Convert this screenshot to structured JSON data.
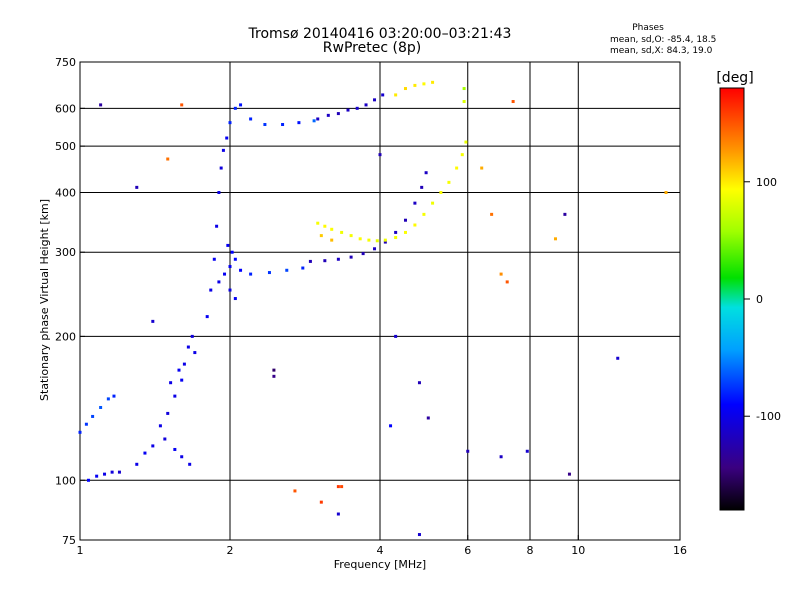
{
  "chart_data": {
    "type": "scatter",
    "title": "Tromsø 20140416 03:20:00–03:21:43",
    "subtitle": "RwPretec (8p)",
    "xlabel": "Frequency [MHz]",
    "ylabel": "Stationary phase Virtual Height [km]",
    "x_scale": "log",
    "y_scale": "log",
    "xlim": [
      1,
      16
    ],
    "ylim": [
      75,
      750
    ],
    "x_ticks": [
      1,
      2,
      4,
      6,
      8,
      10,
      16
    ],
    "y_ticks": [
      75,
      100,
      200,
      300,
      400,
      500,
      600,
      750
    ],
    "x_grid": [
      2,
      4,
      6,
      8,
      10
    ],
    "y_grid": [
      100,
      200,
      300,
      400,
      500,
      600
    ],
    "grid": true,
    "phase_stats": {
      "heading": "Phases",
      "o_line": "mean, sd,O: -85.4, 18.5",
      "x_line": "mean, sd,X:  84.3, 19.0"
    },
    "colorbar": {
      "label": "[deg]",
      "range": [
        -180,
        180
      ],
      "ticks": [
        100,
        0,
        -100
      ],
      "tick_labels": [
        "100",
        "0",
        "-100"
      ]
    },
    "series": [
      {
        "points": [
          {
            "x": 1.0,
            "y": 126,
            "phase": -80
          },
          {
            "x": 1.03,
            "y": 131,
            "phase": -75
          },
          {
            "x": 1.06,
            "y": 136,
            "phase": -70
          },
          {
            "x": 1.1,
            "y": 142,
            "phase": -65
          },
          {
            "x": 1.14,
            "y": 148,
            "phase": -70
          },
          {
            "x": 1.17,
            "y": 150,
            "phase": -80
          },
          {
            "x": 1.04,
            "y": 100,
            "phase": -90
          },
          {
            "x": 1.08,
            "y": 102,
            "phase": -95
          },
          {
            "x": 1.12,
            "y": 103,
            "phase": -100
          },
          {
            "x": 1.16,
            "y": 104,
            "phase": -105
          },
          {
            "x": 1.2,
            "y": 104,
            "phase": -110
          },
          {
            "x": 1.3,
            "y": 108,
            "phase": -100
          },
          {
            "x": 1.35,
            "y": 114,
            "phase": -95
          },
          {
            "x": 1.4,
            "y": 118,
            "phase": -100
          },
          {
            "x": 1.45,
            "y": 130,
            "phase": -100
          },
          {
            "x": 1.5,
            "y": 138,
            "phase": -105
          },
          {
            "x": 1.55,
            "y": 150,
            "phase": -100
          },
          {
            "x": 1.6,
            "y": 162,
            "phase": -95
          },
          {
            "x": 1.62,
            "y": 175,
            "phase": -100
          },
          {
            "x": 1.65,
            "y": 190,
            "phase": -100
          },
          {
            "x": 1.68,
            "y": 200,
            "phase": -105
          },
          {
            "x": 1.7,
            "y": 185,
            "phase": -100
          },
          {
            "x": 1.58,
            "y": 170,
            "phase": -95
          },
          {
            "x": 1.52,
            "y": 160,
            "phase": -100
          },
          {
            "x": 1.48,
            "y": 122,
            "phase": -105
          },
          {
            "x": 1.55,
            "y": 116,
            "phase": -95
          },
          {
            "x": 1.6,
            "y": 112,
            "phase": -100
          },
          {
            "x": 1.66,
            "y": 108,
            "phase": -100
          },
          {
            "x": 1.8,
            "y": 220,
            "phase": -95
          },
          {
            "x": 1.83,
            "y": 250,
            "phase": -100
          },
          {
            "x": 1.86,
            "y": 290,
            "phase": -95
          },
          {
            "x": 1.88,
            "y": 340,
            "phase": -100
          },
          {
            "x": 1.9,
            "y": 400,
            "phase": -100
          },
          {
            "x": 1.92,
            "y": 450,
            "phase": -105
          },
          {
            "x": 1.94,
            "y": 490,
            "phase": -100
          },
          {
            "x": 1.97,
            "y": 520,
            "phase": -95
          },
          {
            "x": 1.9,
            "y": 260,
            "phase": -100
          },
          {
            "x": 1.95,
            "y": 270,
            "phase": -95
          },
          {
            "x": 2.0,
            "y": 280,
            "phase": -95
          },
          {
            "x": 2.05,
            "y": 290,
            "phase": -90
          },
          {
            "x": 2.1,
            "y": 275,
            "phase": -90
          },
          {
            "x": 2.0,
            "y": 250,
            "phase": -100
          },
          {
            "x": 2.05,
            "y": 240,
            "phase": -95
          },
          {
            "x": 2.02,
            "y": 300,
            "phase": -90
          },
          {
            "x": 1.98,
            "y": 310,
            "phase": -95
          },
          {
            "x": 2.2,
            "y": 270,
            "phase": -80
          },
          {
            "x": 2.4,
            "y": 272,
            "phase": -75
          },
          {
            "x": 2.6,
            "y": 275,
            "phase": -70
          },
          {
            "x": 2.8,
            "y": 278,
            "phase": -80
          },
          {
            "x": 2.0,
            "y": 560,
            "phase": -80
          },
          {
            "x": 2.05,
            "y": 600,
            "phase": -80
          },
          {
            "x": 2.1,
            "y": 610,
            "phase": -85
          },
          {
            "x": 2.2,
            "y": 570,
            "phase": -80
          },
          {
            "x": 2.35,
            "y": 555,
            "phase": -75
          },
          {
            "x": 2.55,
            "y": 555,
            "phase": -80
          },
          {
            "x": 2.75,
            "y": 560,
            "phase": -85
          },
          {
            "x": 2.95,
            "y": 565,
            "phase": -60
          },
          {
            "x": 3.0,
            "y": 570,
            "phase": -115
          },
          {
            "x": 3.15,
            "y": 580,
            "phase": -115
          },
          {
            "x": 3.3,
            "y": 585,
            "phase": -120
          },
          {
            "x": 3.45,
            "y": 595,
            "phase": -115
          },
          {
            "x": 3.6,
            "y": 600,
            "phase": -110
          },
          {
            "x": 3.75,
            "y": 610,
            "phase": -115
          },
          {
            "x": 3.9,
            "y": 625,
            "phase": -115
          },
          {
            "x": 4.05,
            "y": 640,
            "phase": -110
          },
          {
            "x": 2.9,
            "y": 287,
            "phase": -120
          },
          {
            "x": 3.1,
            "y": 288,
            "phase": -120
          },
          {
            "x": 3.3,
            "y": 290,
            "phase": -115
          },
          {
            "x": 3.5,
            "y": 293,
            "phase": -120
          },
          {
            "x": 3.7,
            "y": 298,
            "phase": -120
          },
          {
            "x": 3.9,
            "y": 305,
            "phase": -115
          },
          {
            "x": 4.1,
            "y": 315,
            "phase": -120
          },
          {
            "x": 4.3,
            "y": 330,
            "phase": -115
          },
          {
            "x": 4.5,
            "y": 350,
            "phase": -120
          },
          {
            "x": 4.7,
            "y": 380,
            "phase": -115
          },
          {
            "x": 4.85,
            "y": 410,
            "phase": -120
          },
          {
            "x": 4.95,
            "y": 440,
            "phase": -115
          },
          {
            "x": 1.1,
            "y": 610,
            "phase": -130
          },
          {
            "x": 1.3,
            "y": 410,
            "phase": -120
          },
          {
            "x": 1.4,
            "y": 215,
            "phase": -110
          },
          {
            "x": 2.45,
            "y": 170,
            "phase": -150
          },
          {
            "x": 2.45,
            "y": 165,
            "phase": -140
          },
          {
            "x": 4.2,
            "y": 130,
            "phase": -90
          },
          {
            "x": 4.3,
            "y": 200,
            "phase": -110
          },
          {
            "x": 4.8,
            "y": 160,
            "phase": -120
          },
          {
            "x": 5.0,
            "y": 135,
            "phase": -130
          },
          {
            "x": 6.0,
            "y": 115,
            "phase": -120
          },
          {
            "x": 7.0,
            "y": 112,
            "phase": -115
          },
          {
            "x": 7.9,
            "y": 115,
            "phase": -110
          },
          {
            "x": 9.4,
            "y": 360,
            "phase": -130
          },
          {
            "x": 9.6,
            "y": 103,
            "phase": -140
          },
          {
            "x": 12.0,
            "y": 180,
            "phase": -110
          },
          {
            "x": 4.8,
            "y": 77,
            "phase": -110
          },
          {
            "x": 3.3,
            "y": 85,
            "phase": -110
          },
          {
            "x": 4.0,
            "y": 480,
            "phase": -120
          }
        ]
      },
      {
        "points": [
          {
            "x": 3.0,
            "y": 345,
            "phase": 90
          },
          {
            "x": 3.1,
            "y": 340,
            "phase": 95
          },
          {
            "x": 3.2,
            "y": 335,
            "phase": 92
          },
          {
            "x": 3.35,
            "y": 330,
            "phase": 88
          },
          {
            "x": 3.5,
            "y": 325,
            "phase": 90
          },
          {
            "x": 3.65,
            "y": 320,
            "phase": 92
          },
          {
            "x": 3.8,
            "y": 318,
            "phase": 90
          },
          {
            "x": 3.95,
            "y": 317,
            "phase": 85
          },
          {
            "x": 4.1,
            "y": 318,
            "phase": 88
          },
          {
            "x": 4.3,
            "y": 322,
            "phase": 90
          },
          {
            "x": 4.5,
            "y": 330,
            "phase": 92
          },
          {
            "x": 4.7,
            "y": 342,
            "phase": 95
          },
          {
            "x": 4.9,
            "y": 360,
            "phase": 90
          },
          {
            "x": 5.1,
            "y": 380,
            "phase": 88
          },
          {
            "x": 5.3,
            "y": 400,
            "phase": 92
          },
          {
            "x": 5.5,
            "y": 420,
            "phase": 90
          },
          {
            "x": 5.7,
            "y": 450,
            "phase": 95
          },
          {
            "x": 5.85,
            "y": 480,
            "phase": 90
          },
          {
            "x": 5.95,
            "y": 510,
            "phase": 85
          },
          {
            "x": 3.05,
            "y": 325,
            "phase": 110
          },
          {
            "x": 3.2,
            "y": 318,
            "phase": 115
          },
          {
            "x": 4.3,
            "y": 640,
            "phase": 100
          },
          {
            "x": 4.5,
            "y": 660,
            "phase": 105
          },
          {
            "x": 4.7,
            "y": 670,
            "phase": 100
          },
          {
            "x": 4.9,
            "y": 675,
            "phase": 95
          },
          {
            "x": 5.1,
            "y": 680,
            "phase": 100
          },
          {
            "x": 5.9,
            "y": 660,
            "phase": 60
          },
          {
            "x": 5.9,
            "y": 620,
            "phase": 80
          },
          {
            "x": 1.5,
            "y": 470,
            "phase": 140
          },
          {
            "x": 1.6,
            "y": 610,
            "phase": 150
          },
          {
            "x": 2.7,
            "y": 95,
            "phase": 150
          },
          {
            "x": 3.3,
            "y": 97,
            "phase": 160
          },
          {
            "x": 3.35,
            "y": 97,
            "phase": 155
          },
          {
            "x": 3.05,
            "y": 90,
            "phase": 160
          },
          {
            "x": 6.4,
            "y": 450,
            "phase": 120
          },
          {
            "x": 6.7,
            "y": 360,
            "phase": 140
          },
          {
            "x": 7.0,
            "y": 270,
            "phase": 130
          },
          {
            "x": 7.2,
            "y": 260,
            "phase": 150
          },
          {
            "x": 7.4,
            "y": 620,
            "phase": 150
          },
          {
            "x": 9.0,
            "y": 320,
            "phase": 120
          },
          {
            "x": 15.0,
            "y": 400,
            "phase": 120
          }
        ]
      }
    ]
  }
}
